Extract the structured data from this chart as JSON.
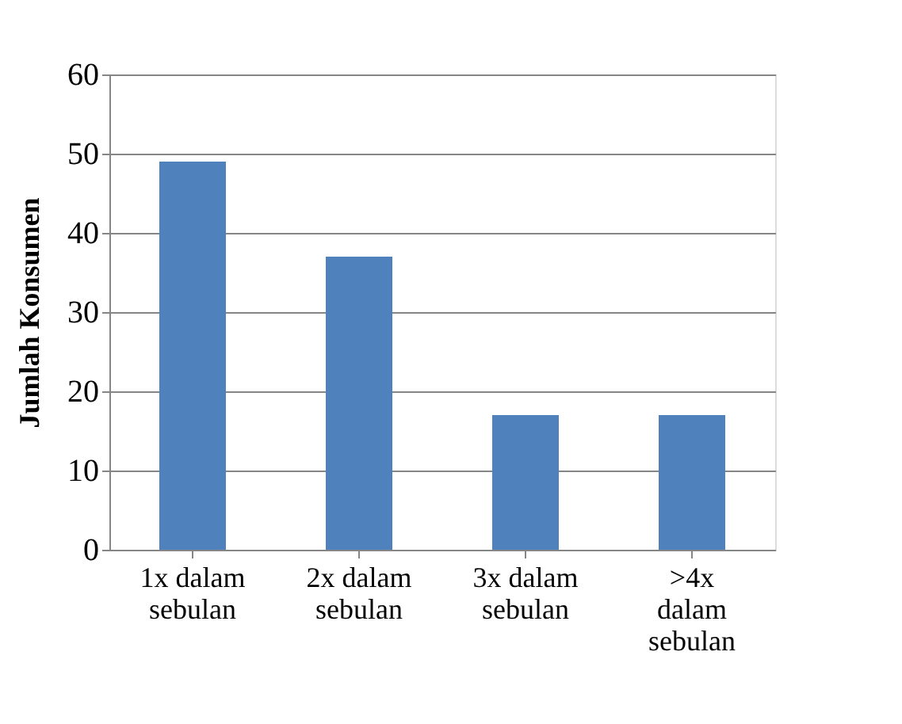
{
  "chart_data": {
    "type": "bar",
    "ylabel": "Jumlah Konsumen",
    "categories": [
      "1x dalam sebulan",
      "2x dalam sebulan",
      "3x dalam sebulan",
      ">4x dalam sebulan"
    ],
    "values": [
      49,
      37,
      17,
      17
    ],
    "color": "#4f81bd",
    "ylim": [
      0,
      60
    ],
    "yticks": [
      0,
      10,
      20,
      30,
      40,
      50,
      60
    ],
    "grid": "y"
  }
}
